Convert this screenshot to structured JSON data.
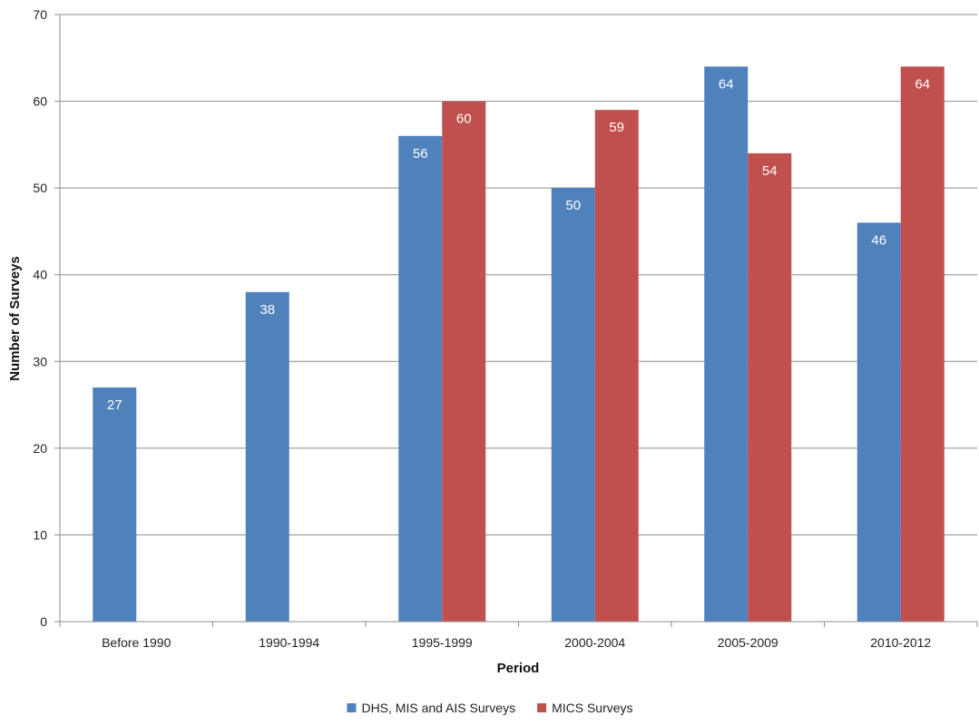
{
  "chart_data": {
    "type": "bar",
    "title": "",
    "xlabel": "Period",
    "ylabel": "Number of Surveys",
    "ylim": [
      0,
      70
    ],
    "yticks": [
      0,
      10,
      20,
      30,
      40,
      50,
      60,
      70
    ],
    "grid": true,
    "legend_position": "bottom",
    "categories": [
      "Before 1990",
      "1990-1994",
      "1995-1999",
      "2000-2004",
      "2005-2009",
      "2010-2012"
    ],
    "series": [
      {
        "name": "DHS, MIS and AIS Surveys",
        "color": "#4f81bd",
        "values": [
          27,
          38,
          56,
          50,
          64,
          46
        ]
      },
      {
        "name": "MICS Surveys",
        "color": "#c0504d",
        "values": [
          null,
          null,
          60,
          59,
          54,
          64
        ]
      }
    ]
  }
}
